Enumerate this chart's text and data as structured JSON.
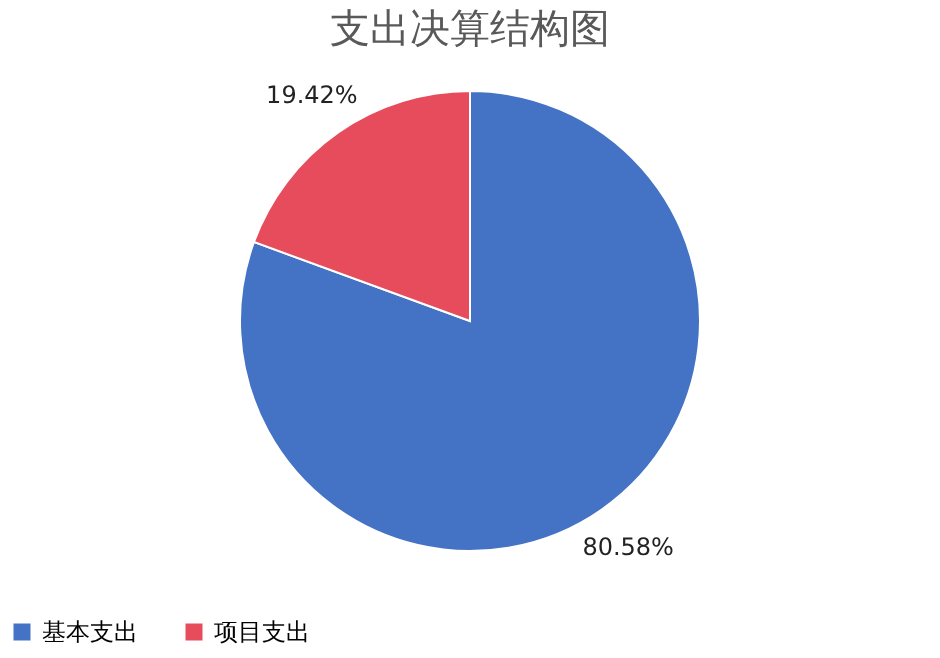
{
  "chart_data": {
    "type": "pie",
    "title": "支出决算结构图",
    "categories": [
      "基本支出",
      "项目支出"
    ],
    "values": [
      80.58,
      19.42
    ],
    "colors": [
      "#4472c4",
      "#e64c5c"
    ],
    "value_labels": [
      "80.58%",
      "19.42%"
    ],
    "legend": "bottom"
  }
}
